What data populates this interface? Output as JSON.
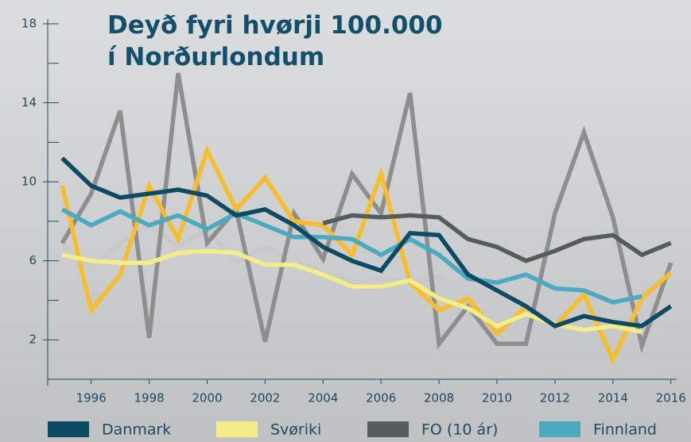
{
  "chart_data": {
    "type": "line",
    "title": [
      "Deyð fyri hvørji 100.000",
      "í Norðurlondum"
    ],
    "x": [
      1995,
      1996,
      1997,
      1998,
      1999,
      2000,
      2001,
      2002,
      2003,
      2004,
      2005,
      2006,
      2007,
      2008,
      2009,
      2010,
      2011,
      2012,
      2013,
      2014,
      2015,
      2016
    ],
    "xlim": [
      1994.5,
      2016.2
    ],
    "xticks": [
      1996,
      1998,
      2000,
      2002,
      2004,
      2006,
      2008,
      2010,
      2012,
      2014,
      2016
    ],
    "ylim": [
      0,
      18
    ],
    "yticks": [
      2,
      6,
      10,
      14,
      18
    ],
    "series": [
      {
        "color": "#c9c9c9",
        "values": [
          6.9,
          5.6,
          6.9,
          7.8,
          6.7,
          7.6,
          5.9,
          6.7,
          5.9,
          5.5,
          4.9,
          5.1,
          4.9,
          5.2,
          4.1,
          4.0,
          3.1,
          2.7,
          3.7,
          2.7,
          2.3,
          2.3
        ]
      },
      {
        "color": "#8e8e8e",
        "values": [
          6.9,
          9.4,
          13.6,
          2.1,
          15.5,
          6.9,
          8.6,
          1.9,
          8.4,
          6.1,
          10.4,
          8.4,
          14.5,
          1.8,
          3.7,
          1.8,
          1.8,
          8.4,
          12.5,
          8.2,
          1.7,
          5.9
        ]
      },
      {
        "color": "#f7bd2a",
        "values": [
          9.8,
          3.5,
          5.3,
          9.8,
          7.1,
          11.6,
          8.6,
          10.2,
          8.0,
          7.8,
          6.3,
          10.4,
          4.9,
          3.5,
          4.1,
          2.3,
          3.7,
          2.7,
          4.3,
          1.0,
          4.1,
          5.4
        ]
      },
      {
        "name": "Svøriki",
        "color": "#f4ec8a",
        "values": [
          6.3,
          6.0,
          5.9,
          5.9,
          6.4,
          6.5,
          6.4,
          5.8,
          5.8,
          5.3,
          4.7,
          4.7,
          5.0,
          4.1,
          3.6,
          2.7,
          3.3,
          2.8,
          2.5,
          2.7,
          2.4,
          null
        ]
      },
      {
        "name": "Finnland",
        "color": "#4ba9c0",
        "values": [
          8.6,
          7.8,
          8.5,
          7.8,
          8.3,
          7.6,
          8.4,
          7.8,
          7.2,
          7.2,
          7.1,
          6.3,
          7.1,
          6.3,
          5.1,
          4.9,
          5.3,
          4.6,
          4.5,
          3.9,
          4.2,
          null
        ]
      },
      {
        "name": "Danmark",
        "color": "#0d4a63",
        "values": [
          11.2,
          9.8,
          9.2,
          9.4,
          9.6,
          9.3,
          8.3,
          8.6,
          7.8,
          6.7,
          6.0,
          5.5,
          7.4,
          7.3,
          5.3,
          4.5,
          3.7,
          2.7,
          3.2,
          2.9,
          2.7,
          3.7
        ]
      },
      {
        "name": "FO (10 ár)",
        "color": "#555c60",
        "values": [
          null,
          null,
          null,
          null,
          null,
          null,
          null,
          null,
          null,
          7.9,
          8.3,
          8.2,
          8.3,
          8.2,
          7.1,
          6.7,
          6.0,
          6.5,
          7.1,
          7.3,
          6.3,
          6.9
        ]
      }
    ]
  }
}
